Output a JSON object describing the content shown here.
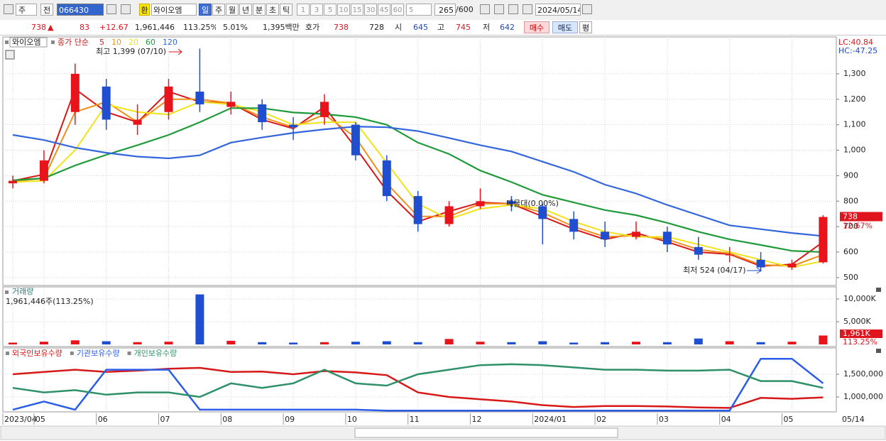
{
  "toolbar": {
    "market": "주",
    "prev": "전",
    "code": "066430",
    "fx": "환",
    "name": "와이오엠",
    "periods": [
      "일",
      "주",
      "월",
      "년",
      "분",
      "초",
      "틱"
    ],
    "intervals": [
      "1",
      "3",
      "5",
      "10",
      "15",
      "30",
      "45",
      "60"
    ],
    "count_select": "5",
    "count": "265",
    "count_max": "/600",
    "date": "2024/05/14"
  },
  "quote": {
    "price": "738",
    "arrow": "▲",
    "change": "83",
    "change_pct": "+12.67%",
    "volume": "1,961,446",
    "volume_ratio": "113.25%",
    "turnover": "5.01%",
    "amount": "1,395백만",
    "hoga": "호가",
    "ask": "738",
    "bid": "728",
    "open_label": "시",
    "open": "645",
    "high_label": "고",
    "high": "745",
    "low_label": "저",
    "low": "642",
    "buy": "매수",
    "sell": "매도",
    "avg": "평"
  },
  "chart_data": [
    {
      "type": "candlestick",
      "name": "와이오엠",
      "ma_label": "종가 단순",
      "categories": [
        "2023/04",
        "05",
        null,
        "06",
        null,
        "07",
        null,
        "08",
        null,
        "09",
        null,
        "10",
        null,
        "11",
        null,
        "12",
        null,
        "2024/01",
        null,
        "02",
        null,
        "03",
        null,
        "04",
        null,
        "05",
        null
      ],
      "open": [
        870,
        880,
        1150,
        1250,
        1100,
        1150,
        1230,
        1170,
        1180,
        1100,
        1130,
        1100,
        960,
        820,
        710,
        780,
        800,
        780,
        730,
        680,
        660,
        680,
        620,
        590,
        570,
        540,
        560
      ],
      "high": [
        900,
        1000,
        1340,
        1280,
        1180,
        1280,
        1399,
        1230,
        1200,
        1130,
        1220,
        1110,
        980,
        840,
        800,
        850,
        820,
        790,
        760,
        720,
        720,
        700,
        660,
        620,
        600,
        570,
        745
      ],
      "low": [
        850,
        870,
        1100,
        1080,
        1060,
        1120,
        1150,
        1140,
        1080,
        1040,
        1100,
        960,
        800,
        680,
        700,
        770,
        760,
        630,
        650,
        620,
        650,
        600,
        570,
        560,
        524,
        530,
        555
      ],
      "close": [
        880,
        960,
        1300,
        1120,
        1120,
        1250,
        1180,
        1190,
        1110,
        1090,
        1190,
        980,
        820,
        710,
        780,
        800,
        790,
        730,
        680,
        650,
        680,
        630,
        590,
        590,
        540,
        555,
        738
      ],
      "up_color": "#e8141b",
      "down_color": "#1f4fd0",
      "series": [
        {
          "name": "5",
          "color": "#d81818",
          "values": [
            880,
            905,
            1240,
            1150,
            1110,
            1230,
            1190,
            1185,
            1120,
            1085,
            1170,
            1010,
            840,
            720,
            760,
            795,
            790,
            740,
            690,
            650,
            675,
            640,
            600,
            592,
            545,
            552,
            640
          ]
        },
        {
          "name": "10",
          "color": "#f0901a",
          "values": [
            878,
            890,
            1150,
            1190,
            1110,
            1200,
            1200,
            1185,
            1130,
            1090,
            1140,
            1050,
            870,
            740,
            740,
            790,
            790,
            755,
            700,
            660,
            665,
            650,
            610,
            595,
            550,
            545,
            590
          ]
        },
        {
          "name": "20",
          "color": "#f2e21a",
          "values": [
            875,
            880,
            1000,
            1180,
            1150,
            1140,
            1190,
            1180,
            1150,
            1100,
            1110,
            1110,
            950,
            790,
            730,
            770,
            785,
            770,
            720,
            680,
            660,
            660,
            630,
            600,
            570,
            540,
            565
          ]
        },
        {
          "name": "60",
          "color": "#1f9a3a",
          "values": [
            882,
            890,
            940,
            982,
            1020,
            1060,
            1110,
            1165,
            1165,
            1148,
            1142,
            1130,
            1100,
            1030,
            985,
            920,
            875,
            825,
            795,
            765,
            745,
            715,
            680,
            650,
            628,
            605,
            600
          ]
        },
        {
          "name": "120",
          "color": "#3366dd",
          "values": [
            1060,
            1040,
            1010,
            990,
            975,
            968,
            980,
            1030,
            1050,
            1068,
            1082,
            1093,
            1090,
            1075,
            1048,
            1020,
            995,
            955,
            915,
            865,
            830,
            785,
            745,
            705,
            690,
            675,
            663
          ]
        }
      ],
      "ylim": [
        469,
        1428
      ],
      "yticks": [
        500,
        600,
        700,
        800,
        900,
        {
          "value": 1000,
          "label": "1,000"
        },
        {
          "value": 1100,
          "label": "1,100"
        },
        {
          "value": 1200,
          "label": "1,200"
        },
        {
          "value": 1300,
          "label": "1,300"
        }
      ],
      "grid": true,
      "annotations": [
        "최고 1,399 (07/10)",
        "최저 524 (04/17)",
        "매물대(0.00%)"
      ],
      "lc": "LC:40.84",
      "hc": "HC:-47.25",
      "last_label": "738",
      "last_pct": "12.67%",
      "x_end_label": "05/14"
    },
    {
      "type": "bar",
      "title": "거래량",
      "info": "1,961,446주(113.25%)",
      "values": [
        400,
        600,
        900,
        700,
        500,
        600,
        11000,
        800,
        500,
        400,
        500,
        600,
        700,
        500,
        1200,
        600,
        500,
        700,
        400,
        500,
        600,
        500,
        1300,
        700,
        500,
        600,
        1961
      ],
      "ylim": [
        0,
        12500
      ],
      "yticks": [
        {
          "value": 5000,
          "label": "5,000K"
        },
        {
          "value": 10000,
          "label": "10,000K"
        }
      ],
      "last_label": "1,961K",
      "last_ratio": "113.25%"
    },
    {
      "type": "line",
      "series": [
        {
          "name": "외국인보유수량",
          "color": "#d81818",
          "values": [
            1500000,
            1550000,
            1600000,
            1550000,
            1580000,
            1620000,
            1640000,
            1550000,
            1560000,
            1500000,
            1570000,
            1540000,
            1480000,
            1100000,
            1000000,
            950000,
            900000,
            820000,
            780000,
            800000,
            800000,
            790000,
            770000,
            760000,
            980000,
            960000,
            990000
          ]
        },
        {
          "name": "기관보유수량",
          "color": "#2a5ee8",
          "values": [
            720000,
            900000,
            720000,
            1600000,
            1600000,
            1600000,
            720000,
            720000,
            720000,
            720000,
            720000,
            720000,
            700000,
            700000,
            700000,
            700000,
            700000,
            700000,
            700000,
            700000,
            700000,
            700000,
            700000,
            700000,
            1840000,
            1840000,
            1300000
          ]
        },
        {
          "name": "개인보유수량",
          "color": "#2e9068",
          "values": [
            1200000,
            1100000,
            1150000,
            1050000,
            1100000,
            1100000,
            1000000,
            1300000,
            1200000,
            1300000,
            1600000,
            1300000,
            1250000,
            1500000,
            1600000,
            1700000,
            1720000,
            1700000,
            1650000,
            1600000,
            1600000,
            1580000,
            1580000,
            1600000,
            1350000,
            1350000,
            1200000
          ]
        }
      ],
      "ylim": [
        672000,
        2047000
      ],
      "yticks": [
        {
          "value": 1000000,
          "label": "1,000,000"
        },
        {
          "value": 1500000,
          "label": "1,500,000"
        }
      ]
    }
  ]
}
